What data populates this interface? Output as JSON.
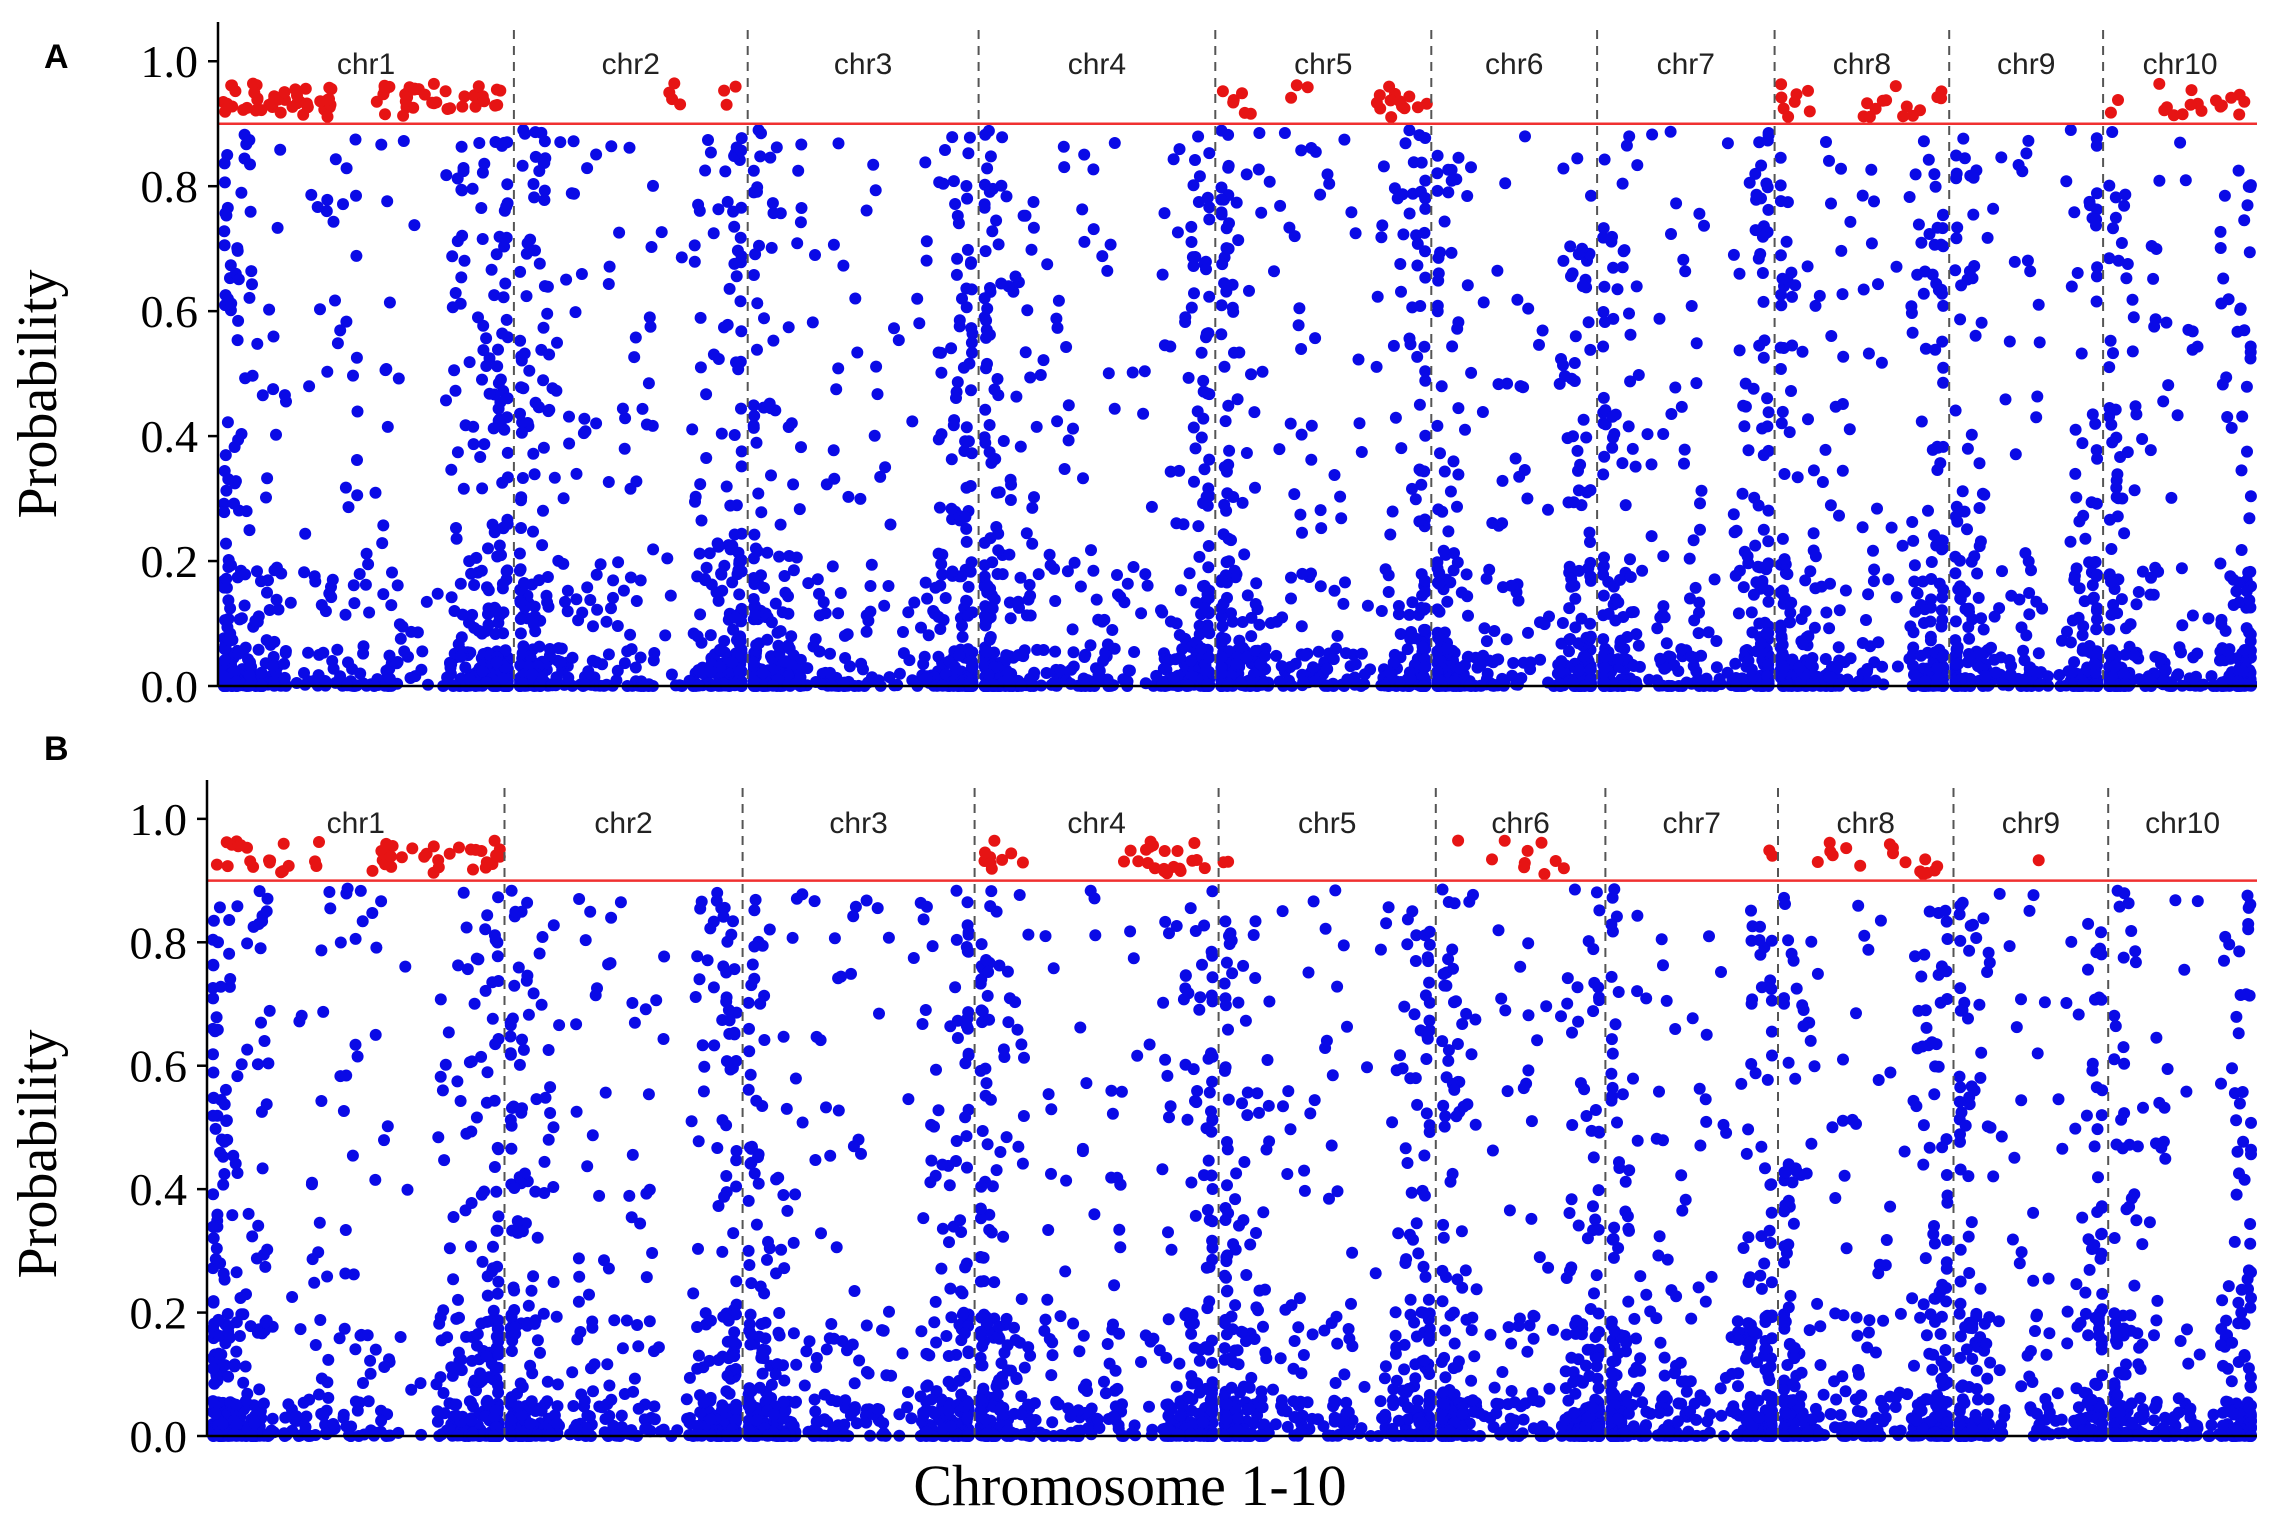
{
  "figure": {
    "xlabel": "Chromosome 1-10",
    "ylabel": "Probability"
  },
  "colors": {
    "below_threshold": "#0a0ae6",
    "above_threshold": "#e61414",
    "threshold_line": "#f03030",
    "separator": "#555555",
    "axis": "#000000"
  },
  "chart_data": [
    {
      "type": "scatter",
      "panel_label": "A",
      "xlabel": "",
      "ylabel": "Probability",
      "ylim": [
        0,
        1.05
      ],
      "yticks": [
        0.0,
        0.2,
        0.4,
        0.6,
        0.8,
        1.0
      ],
      "ytick_labels": [
        "0.0",
        "0.2",
        "0.4",
        "0.6",
        "0.8",
        "1.0"
      ],
      "threshold": 0.9,
      "grid": false,
      "legend": "none",
      "chromosomes": [
        {
          "name": "chr1",
          "width": 1.0
        },
        {
          "name": "chr2",
          "width": 0.79
        },
        {
          "name": "chr3",
          "width": 0.78
        },
        {
          "name": "chr4",
          "width": 0.8
        },
        {
          "name": "chr5",
          "width": 0.73
        },
        {
          "name": "chr6",
          "width": 0.56
        },
        {
          "name": "chr7",
          "width": 0.6
        },
        {
          "name": "chr8",
          "width": 0.59
        },
        {
          "name": "chr9",
          "width": 0.52
        },
        {
          "name": "chr10",
          "width": 0.52
        }
      ],
      "above_threshold_positions": [
        [
          0.0,
          0.38
        ],
        [
          0.53,
          0.98
        ],
        [
          0.73,
          0.98
        ],
        [
          0.02,
          0.16
        ],
        [
          0.65,
          0.72
        ],
        [
          0.85,
          0.97
        ],
        [
          0.92,
          1.0
        ],
        [
          0.02,
          0.2
        ],
        [
          0.8,
          1.0
        ]
      ]
    },
    {
      "type": "scatter",
      "panel_label": "B",
      "xlabel": "Chromosome 1-10",
      "ylabel": "Probability",
      "ylim": [
        0,
        1.05
      ],
      "yticks": [
        0.0,
        0.2,
        0.4,
        0.6,
        0.8,
        1.0
      ],
      "ytick_labels": [
        "0.0",
        "0.2",
        "0.4",
        "0.6",
        "0.8",
        "1.0"
      ],
      "threshold": 0.9,
      "grid": false,
      "legend": "none",
      "chromosomes": [
        {
          "name": "chr1",
          "width": 1.0
        },
        {
          "name": "chr2",
          "width": 0.8
        },
        {
          "name": "chr3",
          "width": 0.78
        },
        {
          "name": "chr4",
          "width": 0.82
        },
        {
          "name": "chr5",
          "width": 0.73
        },
        {
          "name": "chr6",
          "width": 0.57
        },
        {
          "name": "chr7",
          "width": 0.58
        },
        {
          "name": "chr8",
          "width": 0.59
        },
        {
          "name": "chr9",
          "width": 0.52
        },
        {
          "name": "chr10",
          "width": 0.5
        }
      ],
      "above_threshold_positions": [
        [
          0.0,
          1.0
        ],
        [
          0.0,
          1.0
        ],
        [
          0.0,
          0.15
        ],
        [
          0.55,
          1.0
        ],
        [
          0.0,
          0.85
        ],
        [
          0.9,
          1.0
        ],
        [
          0.15,
          0.95
        ],
        [
          0.0,
          1.0
        ]
      ]
    }
  ]
}
